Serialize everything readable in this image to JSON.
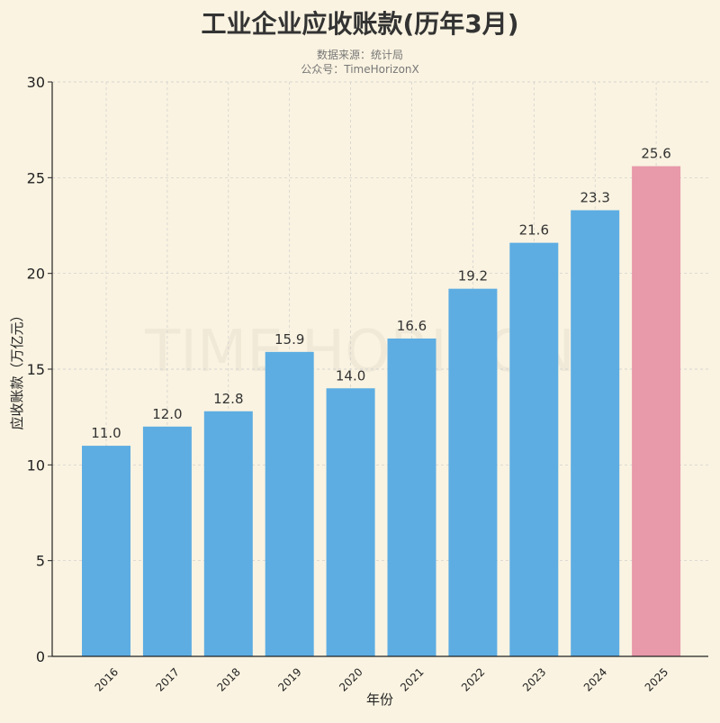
{
  "chart_data": {
    "type": "bar",
    "title": "工业企业应收账款(历年3月)",
    "subtitle_lines": [
      "数据来源：统计局",
      "公众号：TimeHorizonX"
    ],
    "watermark": "TIME HORIZON",
    "xlabel": "年份",
    "ylabel": "应收账款（万亿元）",
    "categories": [
      "2016",
      "2017",
      "2018",
      "2019",
      "2020",
      "2021",
      "2022",
      "2023",
      "2024",
      "2025"
    ],
    "values": [
      11.0,
      12.0,
      12.8,
      15.9,
      14.0,
      16.6,
      19.2,
      21.6,
      23.3,
      25.6
    ],
    "data_labels": [
      "11.0",
      "12.0",
      "12.8",
      "15.9",
      "14.0",
      "16.6",
      "19.2",
      "21.6",
      "23.3",
      "25.6"
    ],
    "ylim": [
      0,
      30
    ],
    "yticks": [
      "0",
      "5",
      "10",
      "15",
      "20",
      "25",
      "30"
    ],
    "grid": true,
    "colors": {
      "default": "#5dade2",
      "highlight": "#e899aa",
      "background": "#faf3e1"
    },
    "highlight_category": "2025"
  }
}
